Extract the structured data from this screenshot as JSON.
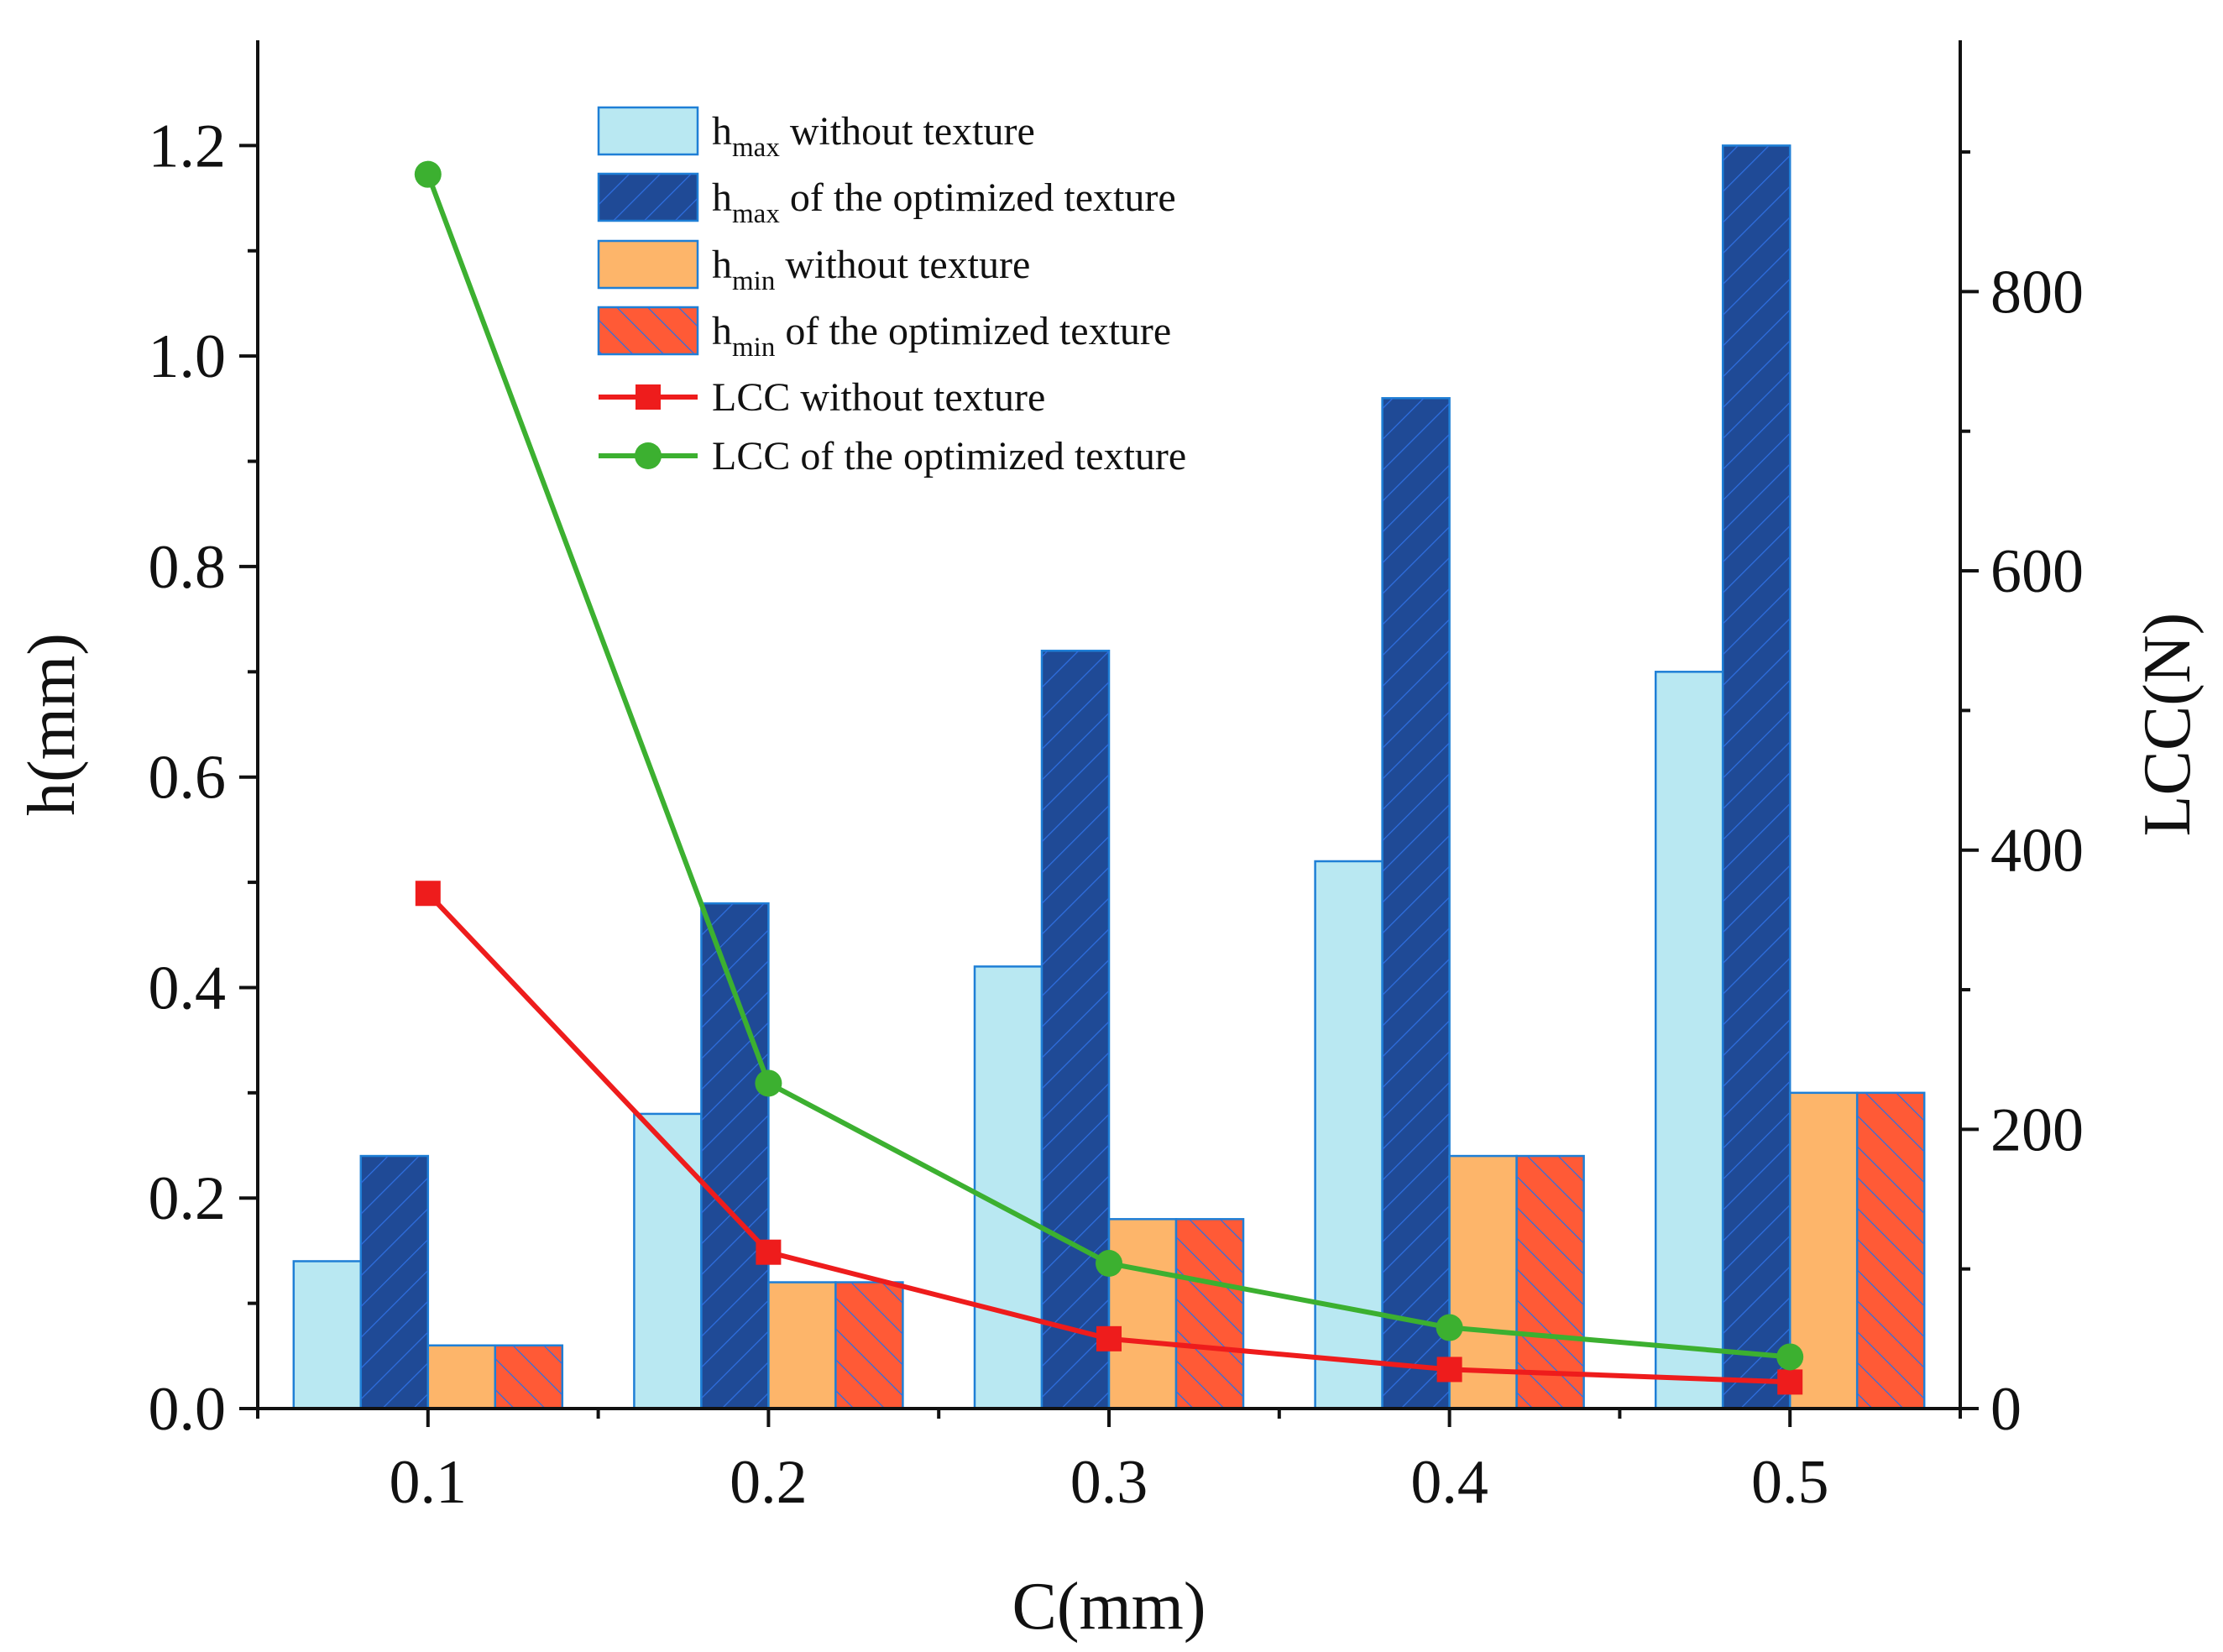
{
  "chart_data": {
    "type": "bar",
    "title": "",
    "xlabel": "C(mm)",
    "ylabel": "h(mm)",
    "y2label": "LCC(N)",
    "categories": [
      "0.1",
      "0.2",
      "0.3",
      "0.4",
      "0.5"
    ],
    "ylim": [
      0,
      1.3
    ],
    "y2lim": [
      0,
      980
    ],
    "yticks": [
      "0.0",
      "0.2",
      "0.4",
      "0.6",
      "0.8",
      "1.0",
      "1.2"
    ],
    "y2ticks": [
      "0",
      "200",
      "400",
      "600",
      "800"
    ],
    "legend_position": "top-center",
    "series": [
      {
        "name": "hmax without texture",
        "base": "h",
        "sub": "max",
        "suffix": " without texture",
        "kind": "bar",
        "axis": "left",
        "color": "#B9E8F2",
        "edge": "#1f7fd6",
        "hatch": "",
        "values": [
          0.14,
          0.28,
          0.42,
          0.52,
          0.7
        ]
      },
      {
        "name": "hmax of the optimized texture",
        "base": "h",
        "sub": "max",
        "suffix": " of the optimized texture",
        "kind": "bar",
        "axis": "left",
        "color": "#1F4A96",
        "edge": "#1f7fd6",
        "hatch": "forward",
        "values": [
          0.24,
          0.48,
          0.72,
          0.96,
          1.2
        ]
      },
      {
        "name": "hmin without texture",
        "base": "h",
        "sub": "min",
        "suffix": " without texture",
        "kind": "bar",
        "axis": "left",
        "color": "#FDB56A",
        "edge": "#1f7fd6",
        "hatch": "",
        "values": [
          0.06,
          0.12,
          0.18,
          0.24,
          0.3
        ]
      },
      {
        "name": "hmin of the optimized texture",
        "base": "h",
        "sub": "min",
        "suffix": " of the optimized texture",
        "kind": "bar",
        "axis": "left",
        "color": "#FF5A36",
        "edge": "#1f7fd6",
        "hatch": "backward",
        "values": [
          0.06,
          0.12,
          0.18,
          0.24,
          0.3
        ]
      },
      {
        "name": "LCC without texture",
        "base": "LCC without texture",
        "sub": "",
        "suffix": "",
        "kind": "line",
        "axis": "right",
        "marker": "square",
        "color": "#EE1C1C",
        "values": [
          369,
          112,
          50,
          28,
          19
        ]
      },
      {
        "name": "LCC of the optimized texture",
        "base": "LCC of the optimized texture",
        "sub": "",
        "suffix": "",
        "kind": "line",
        "axis": "right",
        "marker": "circle",
        "color": "#3CB030",
        "values": [
          884,
          233,
          104,
          58,
          37
        ]
      }
    ]
  }
}
